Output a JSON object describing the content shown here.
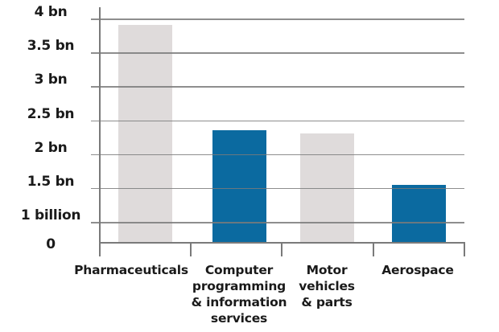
{
  "chart_data": {
    "type": "bar",
    "title": "",
    "xlabel": "",
    "ylabel": "",
    "categories": [
      "Pharmaceuticals",
      "Computer programming & information services",
      "Motor vehicles & parts",
      "Aerospace"
    ],
    "category_labels_display": [
      "Pharmaceuticals",
      "Computer\nprogramming\n& information\nservices",
      "Motor\nvehicles\n& parts",
      "Aerospace"
    ],
    "values": [
      3.9,
      2.35,
      2.3,
      1.55
    ],
    "units": "billion",
    "bar_colors": [
      "#dfdbdb",
      "#0b6aa0",
      "#dfdbdb",
      "#0b6aa0"
    ],
    "ylim": [
      0,
      4
    ],
    "y_axis_break": "between 0 and 1 billion",
    "yticks": [
      {
        "value": 4,
        "label": "4 bn"
      },
      {
        "value": 3.5,
        "label": "3.5 bn"
      },
      {
        "value": 3,
        "label": "3 bn"
      },
      {
        "value": 2.5,
        "label": "2.5 bn"
      },
      {
        "value": 2,
        "label": "2 bn"
      },
      {
        "value": 1.5,
        "label": "1.5 bn"
      },
      {
        "value": 1,
        "label": "1 billion"
      },
      {
        "value": 0,
        "label": "0"
      }
    ],
    "grid": true,
    "legend": null
  },
  "colors": {
    "grid": "#7a7a7a",
    "gray_bar": "#dfdbdb",
    "blue_bar": "#0b6aa0",
    "text": "#1a1a1a"
  }
}
